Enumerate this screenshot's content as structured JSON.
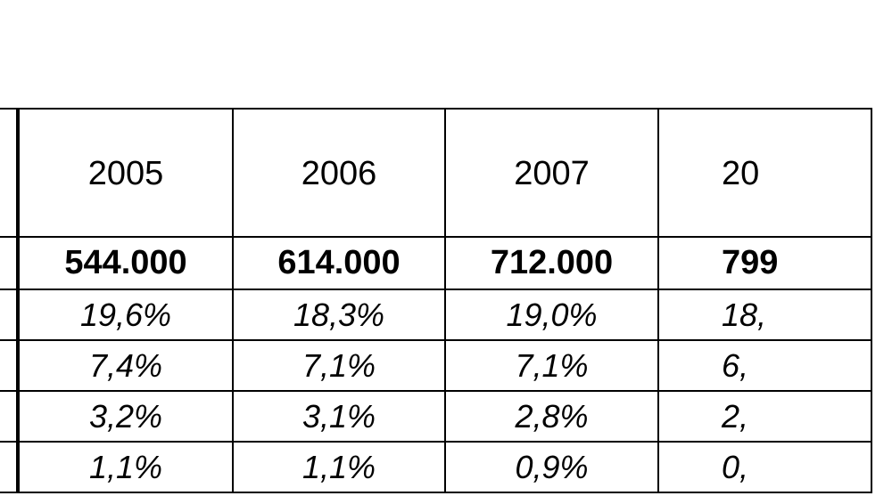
{
  "table": {
    "columns": [
      "2005",
      "2006",
      "2007",
      "20"
    ],
    "rows": [
      [
        "544.000",
        "614.000",
        "712.000",
        "799"
      ],
      [
        "19,6%",
        "18,3%",
        "19,0%",
        "18,"
      ],
      [
        "7,4%",
        "7,1%",
        "7,1%",
        "6,"
      ],
      [
        "3,2%",
        "3,1%",
        "2,8%",
        "2,"
      ],
      [
        "1,1%",
        "1,1%",
        "0,9%",
        "0,"
      ]
    ]
  }
}
